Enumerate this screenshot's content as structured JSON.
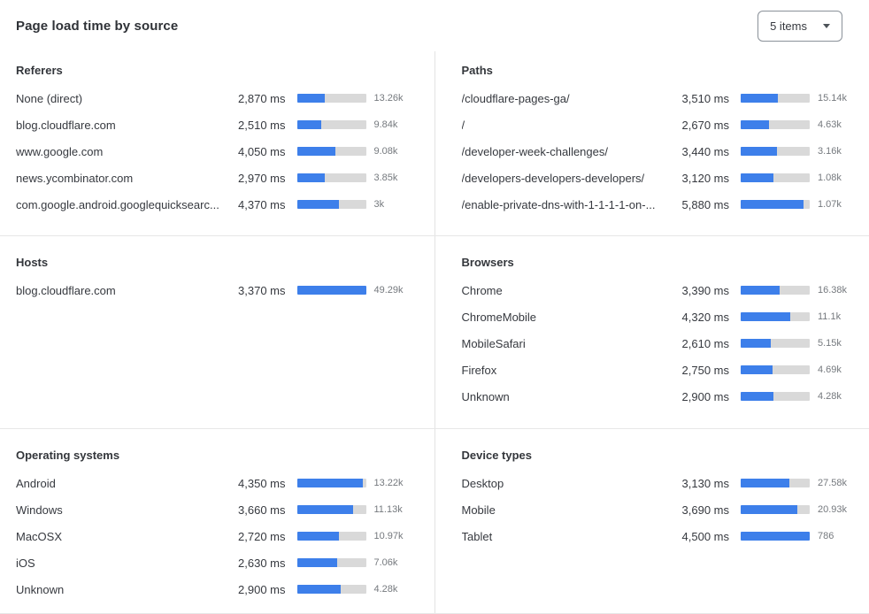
{
  "header": {
    "title": "Page load time by source",
    "items_dropdown": {
      "value": "5 items",
      "icon": "chevron-down-icon"
    }
  },
  "colors": {
    "bar_fill": "#3D7FEA",
    "bar_track": "#D9D9D9",
    "divider": "#E3E3E3",
    "text_primary": "#36393F",
    "text_secondary": "#75797E"
  },
  "bands": [
    {
      "left": {
        "title": "Referers",
        "rows": [
          {
            "label": "None (direct)",
            "time": "2,870 ms",
            "count": "13.26k",
            "bar_pct": 40
          },
          {
            "label": "blog.cloudflare.com",
            "time": "2,510 ms",
            "count": "9.84k",
            "bar_pct": 35
          },
          {
            "label": "www.google.com",
            "time": "4,050 ms",
            "count": "9.08k",
            "bar_pct": 56
          },
          {
            "label": "news.ycombinator.com",
            "time": "2,970 ms",
            "count": "3.85k",
            "bar_pct": 41
          },
          {
            "label": "com.google.android.googlequicksearc...",
            "time": "4,370 ms",
            "count": "3k",
            "bar_pct": 61
          }
        ]
      },
      "right": {
        "title": "Paths",
        "rows": [
          {
            "label": "/cloudflare-pages-ga/",
            "time": "3,510 ms",
            "count": "15.14k",
            "bar_pct": 54
          },
          {
            "label": "/",
            "time": "2,670 ms",
            "count": "4.63k",
            "bar_pct": 41
          },
          {
            "label": "/developer-week-challenges/",
            "time": "3,440 ms",
            "count": "3.16k",
            "bar_pct": 53
          },
          {
            "label": "/developers-developers-developers/",
            "time": "3,120 ms",
            "count": "1.08k",
            "bar_pct": 48
          },
          {
            "label": "/enable-private-dns-with-1-1-1-1-on-...",
            "time": "5,880 ms",
            "count": "1.07k",
            "bar_pct": 91
          }
        ]
      }
    },
    {
      "left": {
        "title": "Hosts",
        "rows": [
          {
            "label": "blog.cloudflare.com",
            "time": "3,370 ms",
            "count": "49.29k",
            "bar_pct": 100
          }
        ]
      },
      "right": {
        "title": "Browsers",
        "rows": [
          {
            "label": "Chrome",
            "time": "3,390 ms",
            "count": "16.38k",
            "bar_pct": 56
          },
          {
            "label": "ChromeMobile",
            "time": "4,320 ms",
            "count": "11.1k",
            "bar_pct": 72
          },
          {
            "label": "MobileSafari",
            "time": "2,610 ms",
            "count": "5.15k",
            "bar_pct": 43
          },
          {
            "label": "Firefox",
            "time": "2,750 ms",
            "count": "4.69k",
            "bar_pct": 46
          },
          {
            "label": "Unknown",
            "time": "2,900 ms",
            "count": "4.28k",
            "bar_pct": 48
          }
        ]
      }
    },
    {
      "left": {
        "title": "Operating systems",
        "rows": [
          {
            "label": "Android",
            "time": "4,350 ms",
            "count": "13.22k",
            "bar_pct": 95
          },
          {
            "label": "Windows",
            "time": "3,660 ms",
            "count": "11.13k",
            "bar_pct": 81
          },
          {
            "label": "MacOSX",
            "time": "2,720 ms",
            "count": "10.97k",
            "bar_pct": 61
          },
          {
            "label": "iOS",
            "time": "2,630 ms",
            "count": "7.06k",
            "bar_pct": 58
          },
          {
            "label": "Unknown",
            "time": "2,900 ms",
            "count": "4.28k",
            "bar_pct": 64
          }
        ]
      },
      "right": {
        "title": "Device types",
        "rows": [
          {
            "label": "Desktop",
            "time": "3,130 ms",
            "count": "27.58k",
            "bar_pct": 70
          },
          {
            "label": "Mobile",
            "time": "3,690 ms",
            "count": "20.93k",
            "bar_pct": 82
          },
          {
            "label": "Tablet",
            "time": "4,500 ms",
            "count": "786",
            "bar_pct": 100
          }
        ]
      }
    }
  ]
}
